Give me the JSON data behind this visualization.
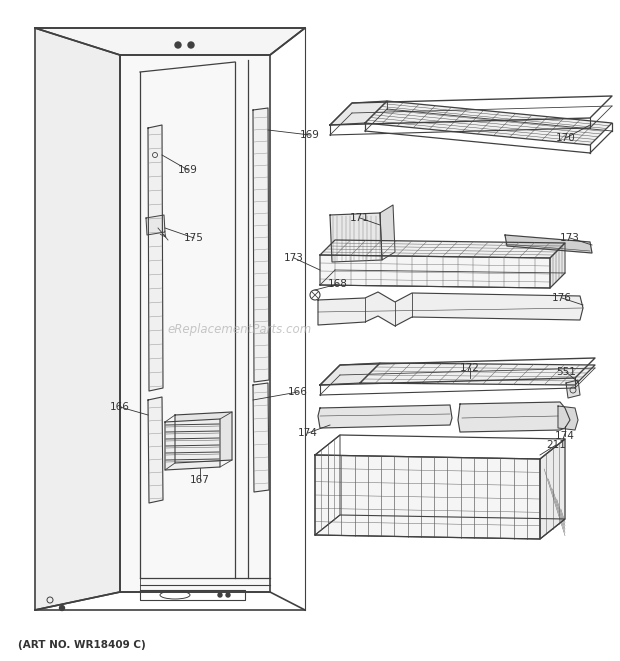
{
  "title": "",
  "footer": "(ART NO. WR18409 C)",
  "bg_color": "#ffffff",
  "line_color": "#404040",
  "watermark": "eReplacementParts.com",
  "figsize": [
    6.2,
    6.61
  ],
  "dpi": 100
}
